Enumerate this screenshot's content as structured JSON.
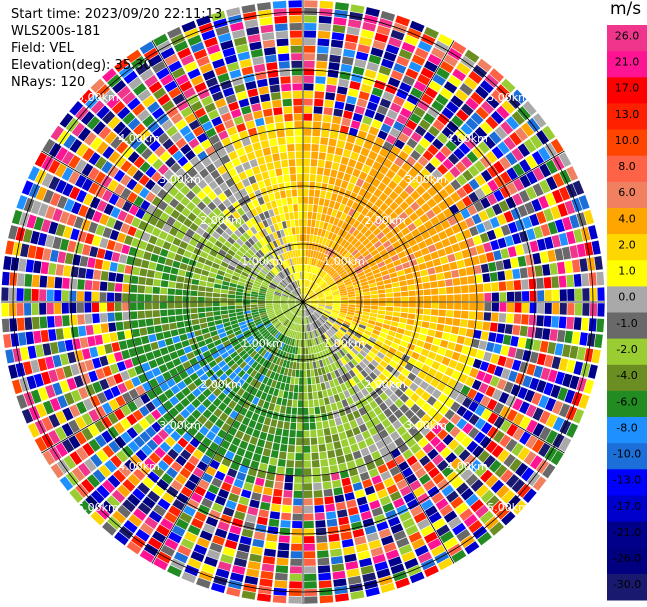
{
  "header": {
    "start_time": "Start time: 2023/09/20 22:11:13",
    "instrument": "WLS200s-181",
    "field": "Field: VEL",
    "elevation": "Elevation(deg): 35.30",
    "nrays": "NRays: 120"
  },
  "chart_data": {
    "type": "heatmap",
    "projection": "polar (PPI)",
    "field": "VEL",
    "units": "m/s",
    "nrays": 120,
    "range_ring_labels": [
      "1.00km",
      "2.00km",
      "3.00km",
      "4.00km",
      "5.00km"
    ],
    "range_rings_km": [
      1,
      2,
      3,
      4,
      5
    ],
    "colorbar": {
      "unit": "m/s",
      "tick_labels": [
        "26.0",
        "21.0",
        "17.0",
        "13.0",
        "10.0",
        "8.0",
        "6.0",
        "4.0",
        "2.0",
        "1.0",
        "0.0",
        "-1.0",
        "-2.0",
        "-4.0",
        "-6.0",
        "-8.0",
        "-10.0",
        "-13.0",
        "-17.0",
        "-21.0",
        "-26.0",
        "-30.0"
      ],
      "colors": [
        "#f0358c",
        "#ff1493",
        "#ff0000",
        "#ff2000",
        "#ff4500",
        "#ff6347",
        "#f08060",
        "#ffa500",
        "#ffd700",
        "#ffff00",
        "#a9a9a9",
        "#696969",
        "#9acd32",
        "#6b8e23",
        "#228b22",
        "#1e90ff",
        "#1c6ed8",
        "#0000ff",
        "#0000cd",
        "#00008b",
        "#000080",
        "#191970"
      ]
    },
    "pattern_summary": "Near field (< ~3 km): approaching (green/olive/blue) on west and south, receding (yellow/orange) on north and east, grey near zero along NW-SE axis. Far field: noisy random colors."
  }
}
